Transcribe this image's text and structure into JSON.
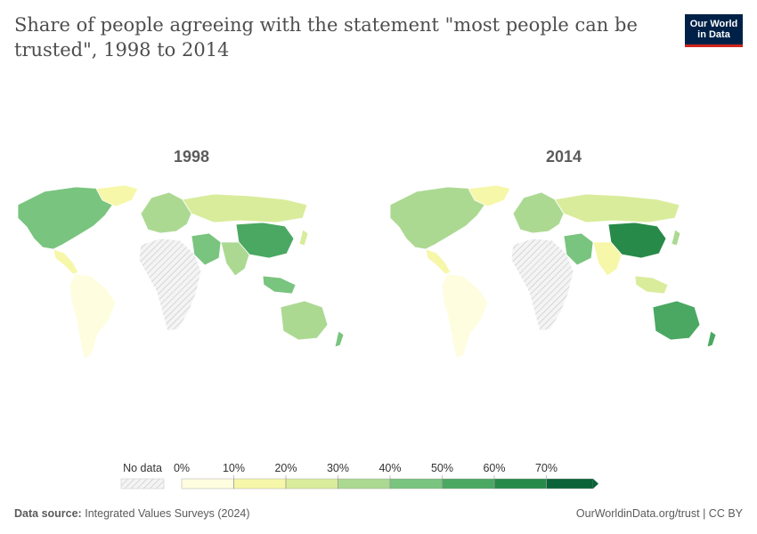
{
  "header": {
    "title": "Share of people agreeing with the statement \"most people can be trusted\", 1998 to 2014",
    "logo_line1": "Our World",
    "logo_line2": "in Data"
  },
  "maps": [
    {
      "year_label": "1998"
    },
    {
      "year_label": "2014"
    }
  ],
  "legend": {
    "no_data_label": "No data",
    "bins": [
      "0%",
      "10%",
      "20%",
      "30%",
      "40%",
      "50%",
      "60%",
      "70%"
    ],
    "colors": [
      "#fefde0",
      "#f6f7a8",
      "#d9ec9b",
      "#acd992",
      "#79c47e",
      "#4aa862",
      "#288a49",
      "#0b6337"
    ],
    "no_data_color": "#e4e4e4"
  },
  "footer": {
    "source_label": "Data source:",
    "source_text": "Integrated Values Surveys (2024)",
    "url_text": "OurWorldinData.org/trust | CC BY"
  }
}
